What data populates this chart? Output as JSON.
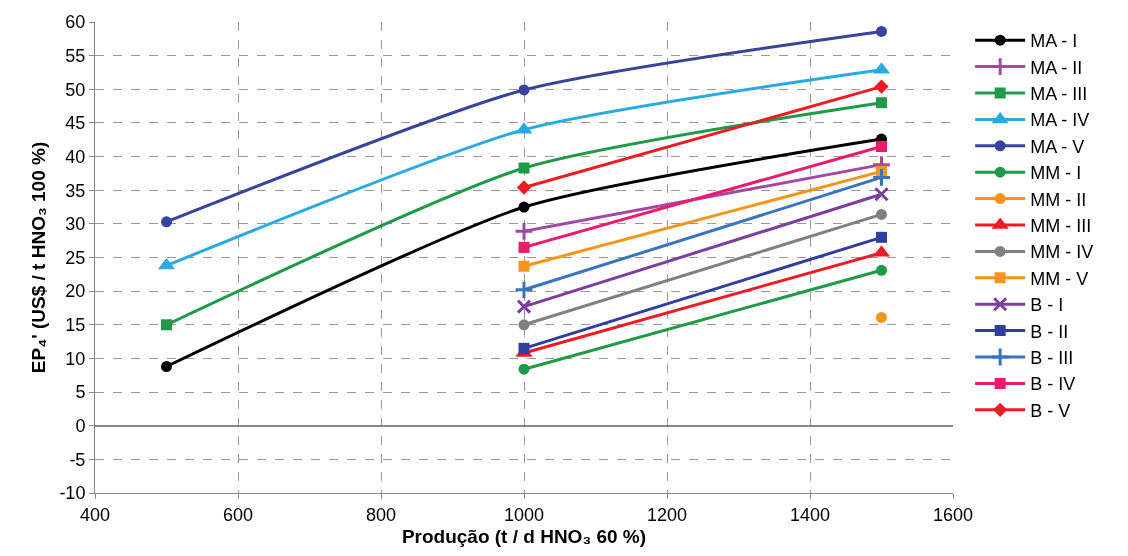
{
  "chart_data": {
    "type": "line",
    "xlabel": "Produção (t / d HNO₃ 60 %)",
    "ylabel": "EP₄' (US$ / t HNO₃ 100 %)",
    "xlim": [
      400,
      1600
    ],
    "xticks": [
      400,
      600,
      800,
      1000,
      1200,
      1400,
      1600
    ],
    "ylim": [
      -10,
      60
    ],
    "yticks": [
      -10,
      -5,
      0,
      5,
      10,
      15,
      20,
      25,
      30,
      35,
      40,
      45,
      50,
      55,
      60
    ],
    "grid": true,
    "legend": "right",
    "line_style": "solid",
    "series": [
      {
        "name": "MA - I",
        "color": "#000000",
        "marker": "circle",
        "x": [
          500,
          1000,
          1500
        ],
        "values": [
          8.8,
          32.5,
          42.6
        ]
      },
      {
        "name": "MA - II",
        "color": "#a349a4",
        "marker": "cross",
        "x": [
          1000,
          1500
        ],
        "values": [
          28.9,
          38.8
        ]
      },
      {
        "name": "MA - III",
        "color": "#1e9a48",
        "marker": "square",
        "x": [
          500,
          1000,
          1500
        ],
        "values": [
          15.0,
          38.3,
          48.0
        ]
      },
      {
        "name": "MA - IV",
        "color": "#29abe2",
        "marker": "triangle",
        "x": [
          500,
          1000,
          1500
        ],
        "values": [
          23.8,
          44.0,
          52.9
        ]
      },
      {
        "name": "MA - V",
        "color": "#36449c",
        "marker": "circle",
        "x": [
          500,
          1000,
          1500
        ],
        "values": [
          30.3,
          49.9,
          58.6
        ]
      },
      {
        "name": "MM - I",
        "color": "#1e9a48",
        "marker": "circle",
        "x": [
          1000,
          1500
        ],
        "values": [
          8.4,
          23.1
        ]
      },
      {
        "name": "MM - II",
        "color": "#f7941d",
        "marker": "circle",
        "x": [
          1500
        ],
        "values": [
          16.1
        ]
      },
      {
        "name": "MM - III",
        "color": "#ed1c24",
        "marker": "triangle",
        "x": [
          1000,
          1500
        ],
        "values": [
          10.8,
          25.7
        ]
      },
      {
        "name": "MM - IV",
        "color": "#808080",
        "marker": "circle",
        "x": [
          1000,
          1500
        ],
        "values": [
          15.0,
          31.4
        ]
      },
      {
        "name": "MM - V",
        "color": "#f7941d",
        "marker": "square",
        "x": [
          1000,
          1500
        ],
        "values": [
          23.7,
          37.8
        ]
      },
      {
        "name": "B - I",
        "color": "#7b3f9e",
        "marker": "x",
        "x": [
          1000,
          1500
        ],
        "values": [
          17.7,
          34.4
        ]
      },
      {
        "name": "B - II",
        "color": "#2e3f9e",
        "marker": "square",
        "x": [
          1000,
          1500
        ],
        "values": [
          11.5,
          28.0
        ]
      },
      {
        "name": "B - III",
        "color": "#3a74c1",
        "marker": "cross",
        "x": [
          1000,
          1500
        ],
        "values": [
          20.2,
          36.9
        ]
      },
      {
        "name": "B - IV",
        "color": "#ec1a6b",
        "marker": "square",
        "x": [
          1000,
          1500
        ],
        "values": [
          26.5,
          41.5
        ]
      },
      {
        "name": "B - V",
        "color": "#ed1c24",
        "marker": "diamond",
        "x": [
          1000,
          1500
        ],
        "values": [
          35.4,
          50.4
        ]
      }
    ]
  }
}
